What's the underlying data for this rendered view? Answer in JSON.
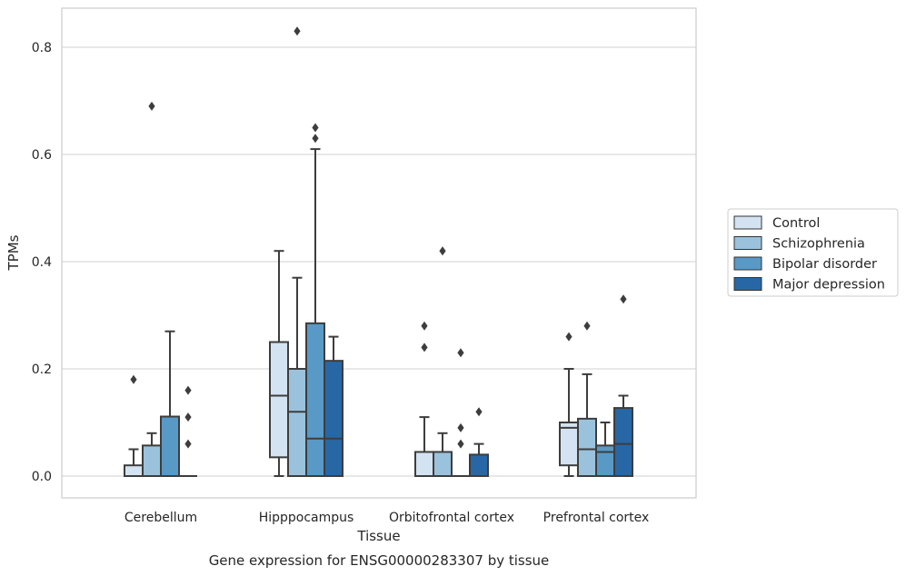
{
  "chart_data": {
    "type": "box",
    "title": "Gene expression for ENSG00000283307 by tissue",
    "xlabel": "Tissue",
    "ylabel": "TPMs",
    "ylim": [
      -0.04,
      0.875
    ],
    "yticks": [
      0.0,
      0.2,
      0.4,
      0.6,
      0.8
    ],
    "ytick_labels": [
      "0.0",
      "0.2",
      "0.4",
      "0.6",
      "0.8"
    ],
    "grid": "horizontal",
    "legend_position": "right",
    "categories": [
      "Cerebellum",
      "Hipppocampus",
      "Orbitofrontal cortex",
      "Prefrontal cortex"
    ],
    "series": [
      {
        "name": "Control",
        "color": "#d4e3f2",
        "boxes": [
          {
            "whislo": 0.0,
            "q1": 0.0,
            "med": 0.0,
            "q3": 0.02,
            "whishi": 0.05,
            "fliers": [
              0.18
            ]
          },
          {
            "whislo": 0.0,
            "q1": 0.035,
            "med": 0.15,
            "q3": 0.25,
            "whishi": 0.42,
            "fliers": []
          },
          {
            "whislo": 0.0,
            "q1": 0.0,
            "med": 0.0,
            "q3": 0.045,
            "whishi": 0.11,
            "fliers": [
              0.24,
              0.28
            ]
          },
          {
            "whislo": 0.0,
            "q1": 0.02,
            "med": 0.09,
            "q3": 0.1,
            "whishi": 0.2,
            "fliers": [
              0.26
            ]
          }
        ]
      },
      {
        "name": "Schizophrenia",
        "color": "#9ac2dd",
        "boxes": [
          {
            "whislo": 0.0,
            "q1": 0.0,
            "med": 0.0,
            "q3": 0.057,
            "whishi": 0.08,
            "fliers": [
              0.69
            ]
          },
          {
            "whislo": 0.0,
            "q1": 0.0,
            "med": 0.12,
            "q3": 0.2,
            "whishi": 0.37,
            "fliers": [
              0.83
            ]
          },
          {
            "whislo": 0.0,
            "q1": 0.0,
            "med": 0.0,
            "q3": 0.045,
            "whishi": 0.08,
            "fliers": [
              0.42
            ]
          },
          {
            "whislo": 0.0,
            "q1": 0.0,
            "med": 0.05,
            "q3": 0.107,
            "whishi": 0.19,
            "fliers": [
              0.28
            ]
          }
        ]
      },
      {
        "name": "Bipolar disorder",
        "color": "#5899c6",
        "boxes": [
          {
            "whislo": 0.0,
            "q1": 0.0,
            "med": 0.0,
            "q3": 0.111,
            "whishi": 0.27,
            "fliers": []
          },
          {
            "whislo": 0.0,
            "q1": 0.0,
            "med": 0.07,
            "q3": 0.285,
            "whishi": 0.61,
            "fliers": [
              0.63,
              0.65
            ]
          },
          {
            "whislo": 0.0,
            "q1": 0.0,
            "med": 0.0,
            "q3": 0.0,
            "whishi": 0.0,
            "fliers": [
              0.06,
              0.09,
              0.23
            ]
          },
          {
            "whislo": 0.0,
            "q1": 0.0,
            "med": 0.045,
            "q3": 0.057,
            "whishi": 0.1,
            "fliers": []
          }
        ]
      },
      {
        "name": "Major depression",
        "color": "#2767a6",
        "boxes": [
          {
            "whislo": 0.0,
            "q1": 0.0,
            "med": 0.0,
            "q3": 0.0,
            "whishi": 0.0,
            "fliers": [
              0.06,
              0.11,
              0.16
            ]
          },
          {
            "whislo": 0.0,
            "q1": 0.0,
            "med": 0.07,
            "q3": 0.215,
            "whishi": 0.26,
            "fliers": []
          },
          {
            "whislo": 0.0,
            "q1": 0.0,
            "med": 0.0,
            "q3": 0.04,
            "whishi": 0.06,
            "fliers": [
              0.12
            ]
          },
          {
            "whislo": 0.0,
            "q1": 0.0,
            "med": 0.06,
            "q3": 0.127,
            "whishi": 0.15,
            "fliers": [
              0.33
            ]
          }
        ]
      }
    ]
  }
}
